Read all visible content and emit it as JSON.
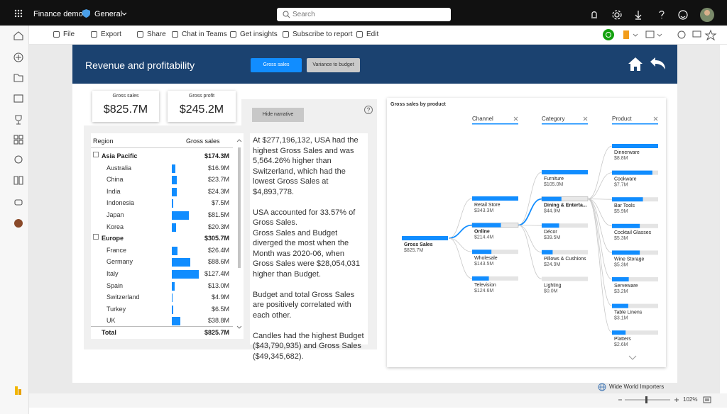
{
  "top_bar": {
    "app": "Finance demo",
    "workspace": "General",
    "search": "Search"
  },
  "toolbar": {
    "items": [
      "File",
      "Export",
      "Share",
      "Chat in Teams",
      "Get insights",
      "Subscribe to report",
      "Edit"
    ]
  },
  "report": {
    "title": "Revenue and profitability",
    "buttons": [
      "Gross sales",
      "Variance to budget"
    ]
  },
  "cards": [
    {
      "label": "Gross sales",
      "value": "$825.7M"
    },
    {
      "label": "Gross profit",
      "value": "$245.2M"
    }
  ],
  "hide_narrative": "Hide narrative",
  "table": {
    "headers": [
      "Region",
      "Gross sales"
    ],
    "groups": [
      {
        "name": "Asia Pacific",
        "total": "$174.3M",
        "rows": [
          {
            "name": "Australia",
            "value": 16.9,
            "label": "$16.9M"
          },
          {
            "name": "China",
            "value": 23.7,
            "label": "$23.7M"
          },
          {
            "name": "India",
            "value": 24.3,
            "label": "$24.3M"
          },
          {
            "name": "Indonesia",
            "value": 7.5,
            "label": "$7.5M"
          },
          {
            "name": "Japan",
            "value": 81.5,
            "label": "$81.5M"
          },
          {
            "name": "Korea",
            "value": 20.3,
            "label": "$20.3M"
          }
        ]
      },
      {
        "name": "Europe",
        "total": "$305.7M",
        "rows": [
          {
            "name": "France",
            "value": 26.4,
            "label": "$26.4M"
          },
          {
            "name": "Germany",
            "value": 88.6,
            "label": "$88.6M"
          },
          {
            "name": "Italy",
            "value": 127.4,
            "label": "$127.4M"
          },
          {
            "name": "Spain",
            "value": 13.0,
            "label": "$13.0M"
          },
          {
            "name": "Switzerland",
            "value": 4.9,
            "label": "$4.9M"
          },
          {
            "name": "Turkey",
            "value": 6.5,
            "label": "$6.5M"
          },
          {
            "name": "UK",
            "value": 38.8,
            "label": "$38.8M"
          }
        ]
      }
    ],
    "total": {
      "name": "Total",
      "value": "$825.7M"
    }
  },
  "narrative": [
    [
      "At $277,196,132, USA had the highest Gross Sales and was 5,564.26% higher than Switzerland, which had the lowest Gross Sales at $4,893,778."
    ],
    [
      "USA accounted for 33.57% of Gross Sales.",
      "Gross Sales and Budget diverged the most when the Month was 2020-06, when Gross Sales were $28,054,031 higher than Budget."
    ],
    [
      "Budget and total Gross Sales are positively correlated with each other."
    ],
    [
      "Candles had the highest Budget ($43,790,935) and Gross Sales ($49,345,682)."
    ]
  ],
  "tree": {
    "title": "Gross sales by product",
    "root": {
      "name": "Gross Sales",
      "label": "$825.7M"
    },
    "columns": [
      {
        "header": "Channel",
        "nodes": [
          {
            "name": "Retail Store",
            "value": 343.3,
            "label": "$343.3M"
          },
          {
            "name": "Online",
            "value": 214.4,
            "label": "$214.4M",
            "selected": true
          },
          {
            "name": "Wholesale",
            "value": 143.5,
            "label": "$143.5M"
          },
          {
            "name": "Television",
            "value": 124.6,
            "label": "$124.6M"
          }
        ]
      },
      {
        "header": "Category",
        "nodes": [
          {
            "name": "Furniture",
            "value": 105.0,
            "label": "$105.0M"
          },
          {
            "name": "Dining & Enterta...",
            "value": 44.9,
            "label": "$44.9M",
            "selected": true
          },
          {
            "name": "Décor",
            "value": 39.5,
            "label": "$39.5M"
          },
          {
            "name": "Pillows & Cushions",
            "value": 24.9,
            "label": "$24.9M"
          },
          {
            "name": "Lighting",
            "value": 0.0,
            "label": "$0.0M"
          }
        ]
      },
      {
        "header": "Product",
        "nodes": [
          {
            "name": "Dinnerware",
            "value": 8.8,
            "label": "$8.8M"
          },
          {
            "name": "Cookware",
            "value": 7.7,
            "label": "$7.7M"
          },
          {
            "name": "Bar Tools",
            "value": 5.9,
            "label": "$5.9M"
          },
          {
            "name": "Cocktail Glasses",
            "value": 5.3,
            "label": "$5.3M"
          },
          {
            "name": "Wine Storage",
            "value": 5.3,
            "label": "$5.3M"
          },
          {
            "name": "Serveware",
            "value": 3.2,
            "label": "$3.2M"
          },
          {
            "name": "Table Linens",
            "value": 3.1,
            "label": "$3.1M"
          },
          {
            "name": "Platters",
            "value": 2.6,
            "label": "$2.6M"
          }
        ]
      }
    ]
  },
  "footer": {
    "company": "Wide World Importers",
    "zoom": "102%"
  }
}
